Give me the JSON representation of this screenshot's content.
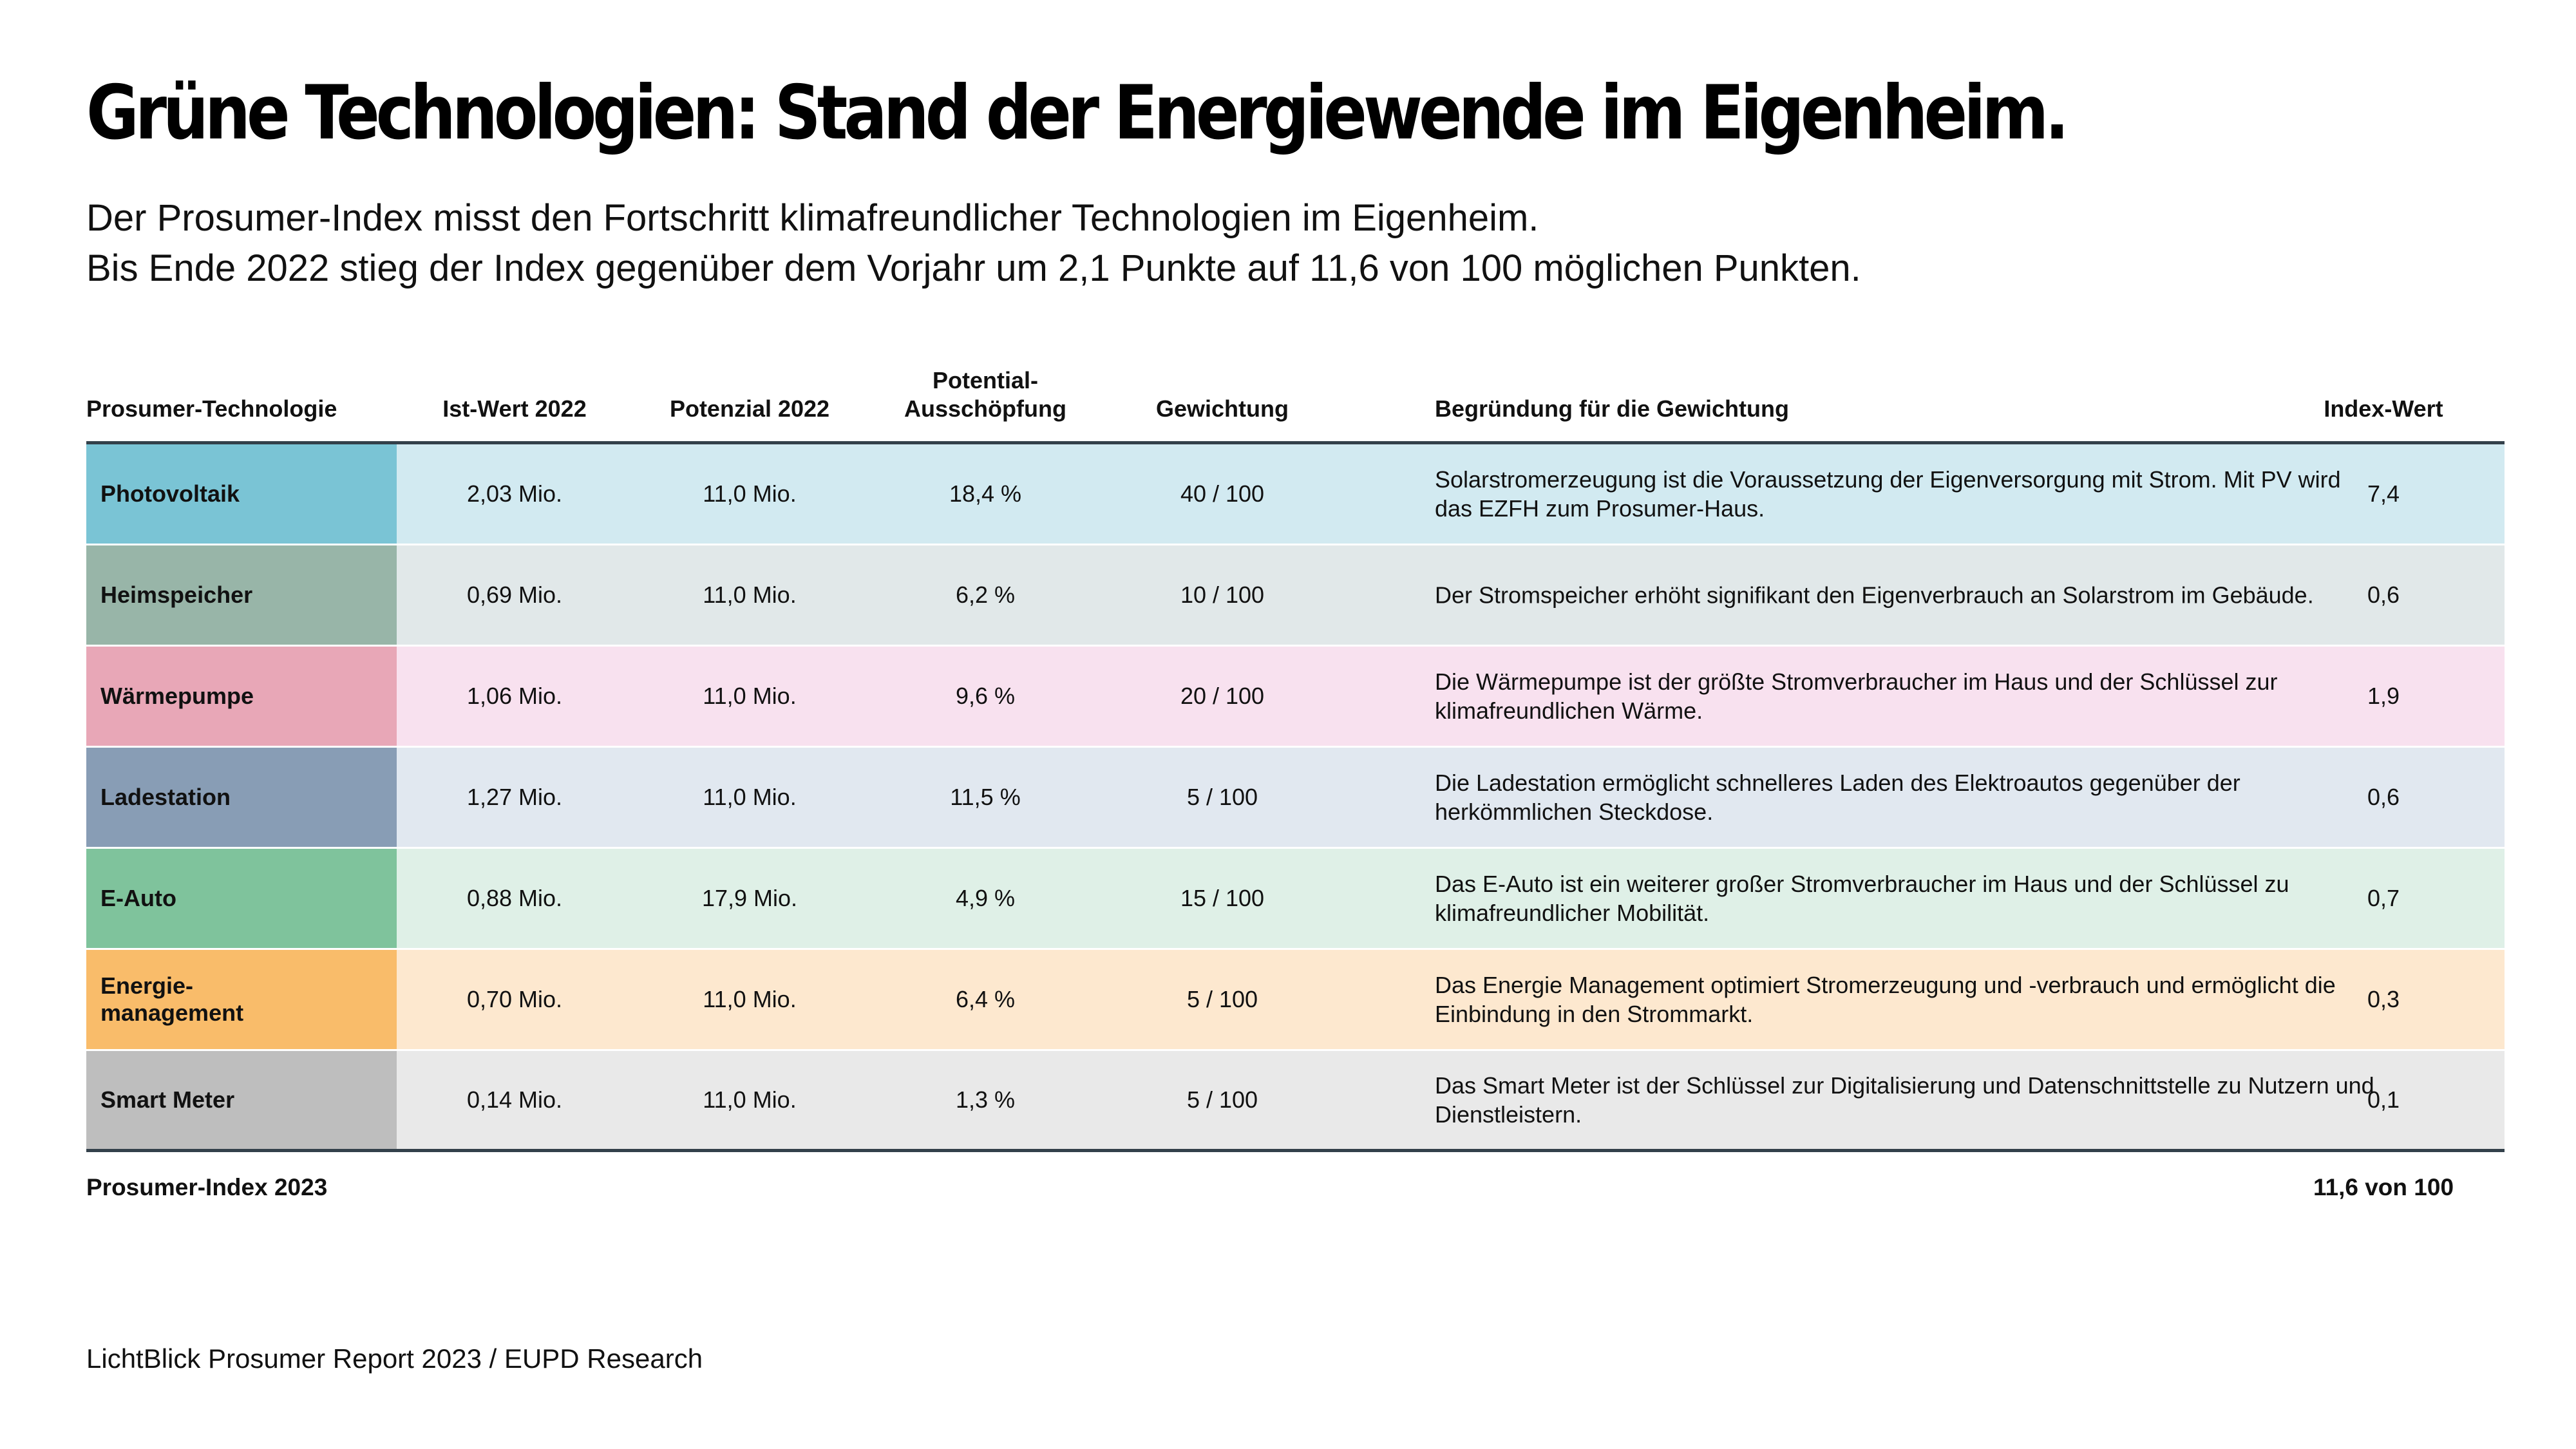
{
  "title": "Grüne Technologien: Stand der Energiewende im Eigenheim.",
  "subtitle": {
    "line1": "Der Prosumer-Index misst den Fortschritt klimafreundlicher Technologien im Eigenheim.",
    "line2": "Bis Ende 2022 stieg der Index gegenüber dem Vorjahr um 2,1 Punkte auf 11,6 von 100 möglichen Punkten."
  },
  "table": {
    "headers": {
      "technology": "Prosumer-Technologie",
      "actual": "Ist-Wert 2022",
      "potential": "Potenzial 2022",
      "utilization_line1": "Potential-",
      "utilization_line2": "Ausschöpfung",
      "weight": "Gewichtung",
      "reason": "Begründung für die Gewichtung",
      "index": "Index-Wert"
    },
    "rows": [
      {
        "technology": "Photovoltaik",
        "actual": "2,03 Mio.",
        "potential": "11,0 Mio.",
        "utilization": "18,4 %",
        "weight": "40 / 100",
        "reason": "Solarstromerzeugung ist die Voraussetzung der Eigenversorgung mit Strom. Mit PV wird das EZFH zum Prosumer-Haus.",
        "index": "7,4",
        "name_color": "#7ac4d5",
        "row_color": "#d2eaf1"
      },
      {
        "technology": "Heimspeicher",
        "actual": "0,69 Mio.",
        "potential": "11,0 Mio.",
        "utilization": "6,2 %",
        "weight": "10 / 100",
        "reason": "Der Stromspeicher erhöht signifikant den Eigenverbrauch an Solarstrom im Gebäude.",
        "index": "0,6",
        "name_color": "#98b5a8",
        "row_color": "#e1e8e9"
      },
      {
        "technology": "Wärmepumpe",
        "actual": "1,06 Mio.",
        "potential": "11,0 Mio.",
        "utilization": "9,6 %",
        "weight": "20 / 100",
        "reason": "Die Wärmepumpe ist der größte Stromverbraucher im Haus und der Schlüssel zur klimafreundlichen Wärme.",
        "index": "1,9",
        "name_color": "#e8a7b7",
        "row_color": "#f8e1ef"
      },
      {
        "technology": "Ladestation",
        "actual": "1,27 Mio.",
        "potential": "11,0 Mio.",
        "utilization": "11,5 %",
        "weight": "5 / 100",
        "reason": "Die Ladestation ermöglicht schnelleres Laden des Elektroautos gegenüber der herkömmlichen Steckdose.",
        "index": "0,6",
        "name_color": "#889db5",
        "row_color": "#e1e8f0"
      },
      {
        "technology": "E-Auto",
        "actual": "0,88 Mio.",
        "potential": "17,9 Mio.",
        "utilization": "4,9 %",
        "weight": "15 / 100",
        "reason": "Das E-Auto ist ein weiterer großer Stromverbraucher im Haus und der Schlüssel zu klimafreundlicher Mobilität.",
        "index": "0,7",
        "name_color": "#7fc39c",
        "row_color": "#dff0e7"
      },
      {
        "technology": "Energie-\nmanagement",
        "actual": "0,70 Mio.",
        "potential": "11,0 Mio.",
        "utilization": "6,4 %",
        "weight": "5 / 100",
        "reason": "Das Energie Management optimiert Stromerzeugung und -verbrauch und ermöglicht die Einbindung in den Strommarkt.",
        "index": "0,3",
        "name_color": "#f9bc6a",
        "row_color": "#fde8cf"
      },
      {
        "technology": "Smart Meter",
        "actual": "0,14 Mio.",
        "potential": "11,0 Mio.",
        "utilization": "1,3 %",
        "weight": "5 / 100",
        "reason": "Das Smart Meter ist der Schlüssel zur Digitalisierung und Datenschnittstelle zu Nutzern und Dienstleistern.",
        "index": "0,1",
        "name_color": "#bebebe",
        "row_color": "#e9e9e9"
      }
    ],
    "footer": {
      "label": "Prosumer-Index 2023",
      "value": "11,6 von 100"
    }
  },
  "source": "LichtBlick Prosumer Report 2023 / EUPD Research"
}
